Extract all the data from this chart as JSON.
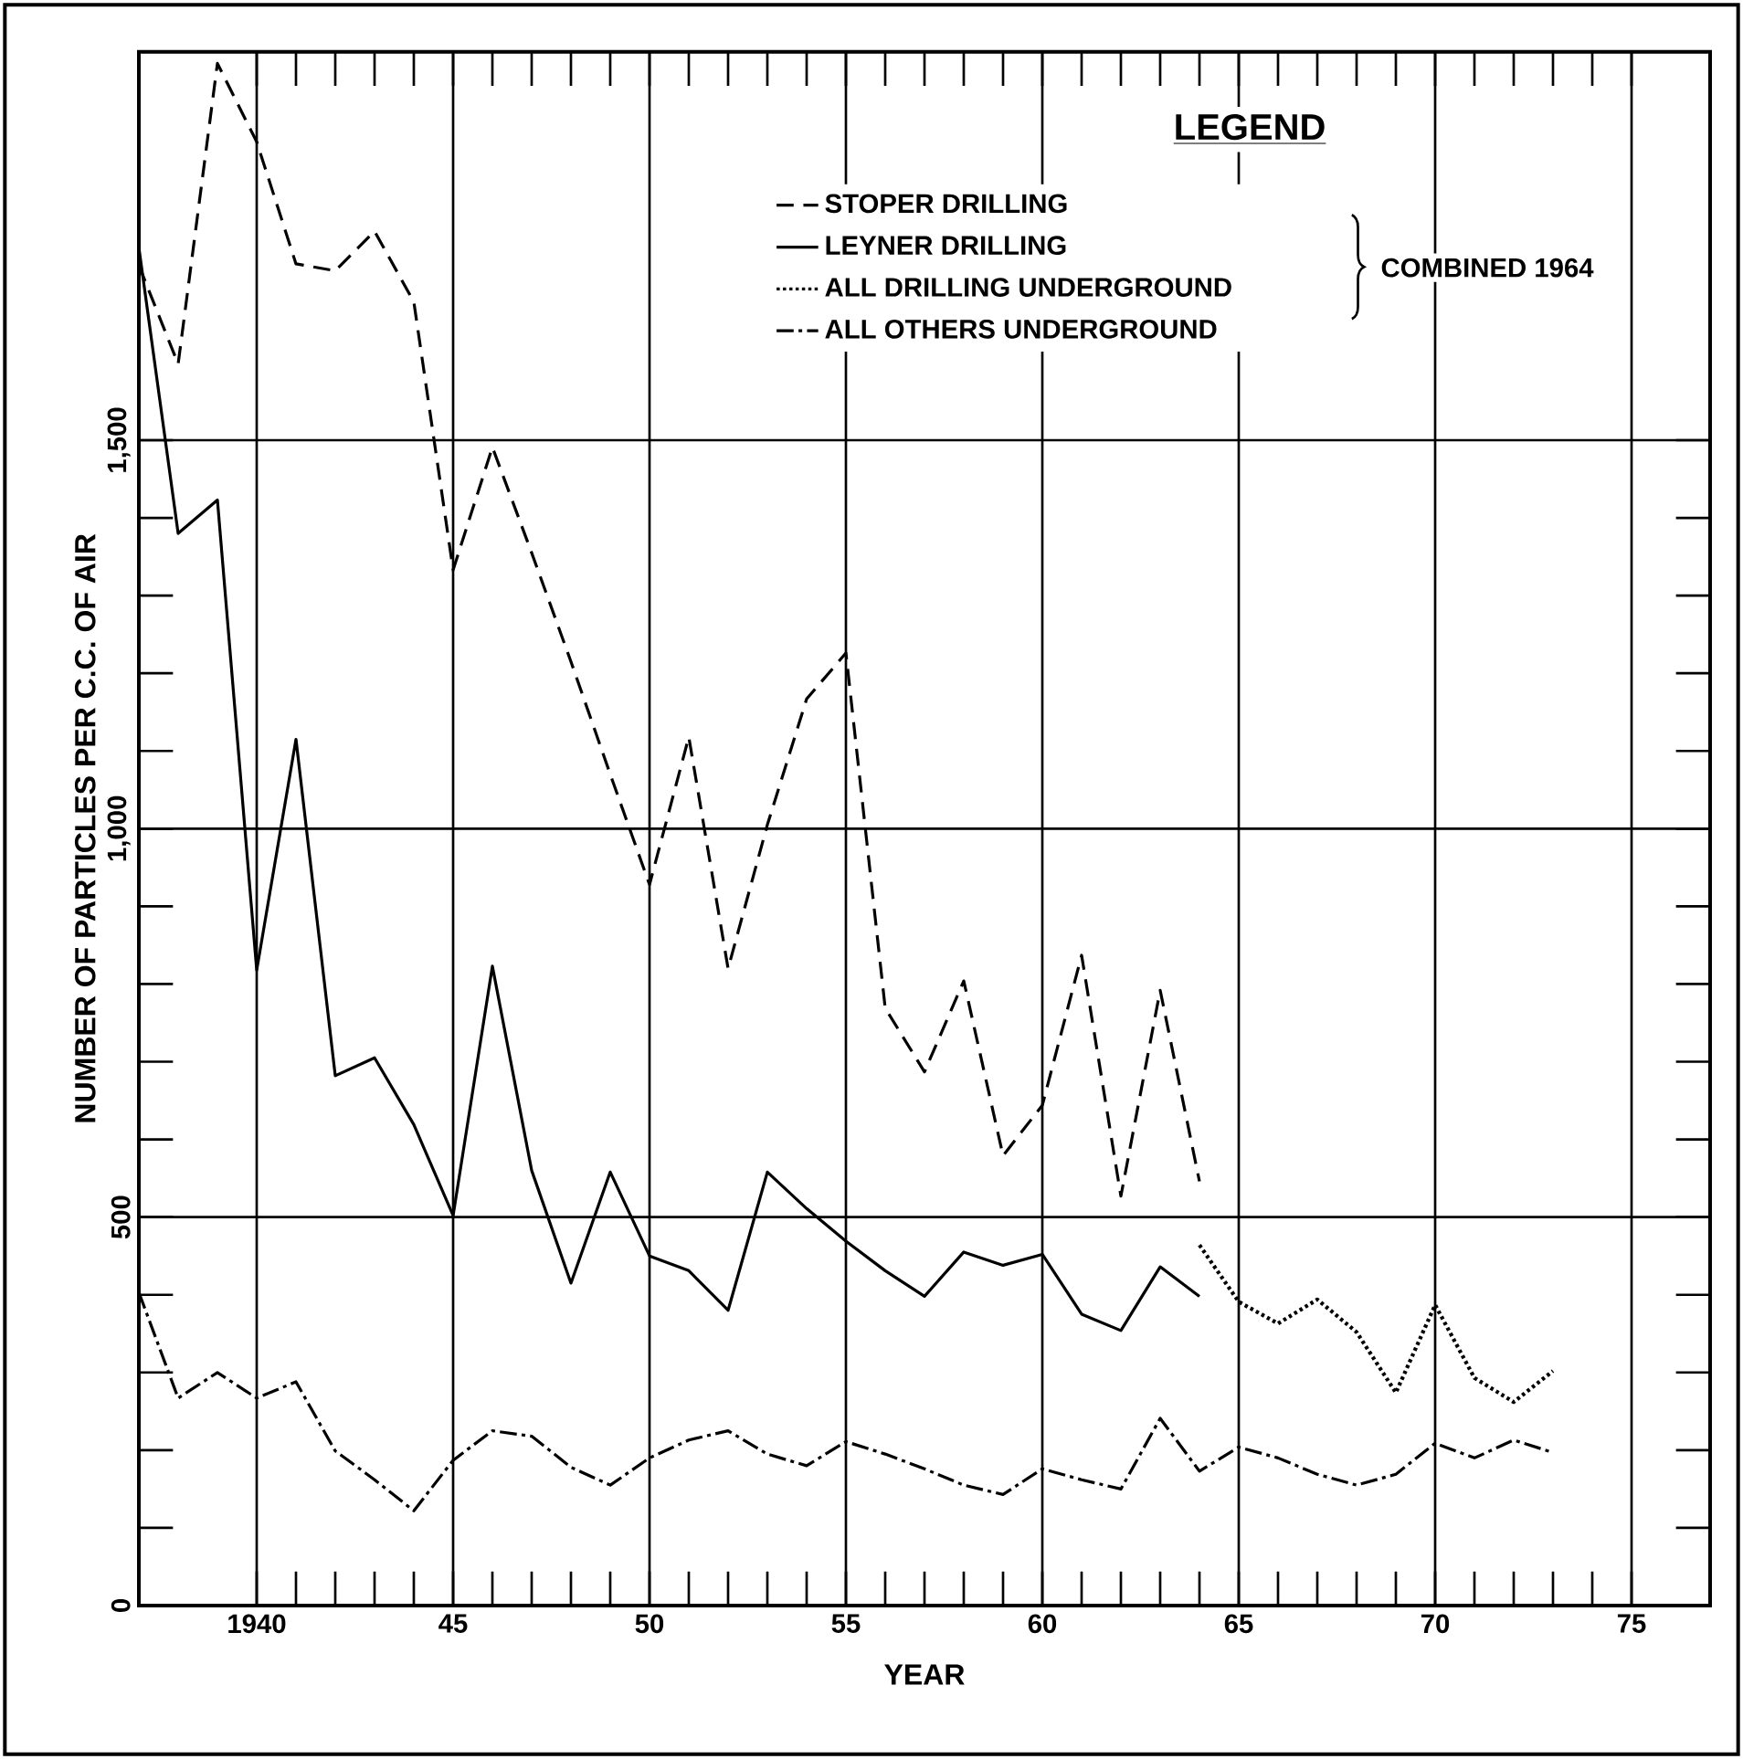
{
  "chart_data": {
    "type": "line",
    "xlabel": "YEAR",
    "ylabel": "NUMBER OF PARTICLES PER C.C. OF AIR",
    "legend_title": "LEGEND",
    "annotations": [
      "COMBINED 1964"
    ],
    "xlim": [
      1937,
      1977
    ],
    "ylim": [
      0,
      2000
    ],
    "xticks": [
      {
        "value": 1940,
        "label": "1940"
      },
      {
        "value": 1945,
        "label": "45"
      },
      {
        "value": 1950,
        "label": "50"
      },
      {
        "value": 1955,
        "label": "55"
      },
      {
        "value": 1960,
        "label": "60"
      },
      {
        "value": 1965,
        "label": "65"
      },
      {
        "value": 1970,
        "label": "70"
      },
      {
        "value": 1975,
        "label": "75"
      }
    ],
    "yticks": [
      0,
      500,
      {
        "value": 1000,
        "label": "1,000"
      },
      {
        "value": 1500,
        "label": "1,500"
      }
    ],
    "grid": true,
    "legend": "top right",
    "marker": "none",
    "series": [
      {
        "name": "STOPER DRILLING",
        "color": "#000000",
        "line_style": "dashed",
        "x": [
          1937,
          1938,
          1939,
          1940,
          1941,
          1942,
          1943,
          1944,
          1945,
          1946,
          1947,
          1948,
          1949,
          1950,
          1951,
          1952,
          1953,
          1954,
          1955,
          1956,
          1957,
          1958,
          1959,
          1960,
          1961,
          1962,
          1963,
          1964
        ],
        "values": [
          1725,
          1598,
          1985,
          1884,
          1727,
          1718,
          1769,
          1678,
          1333,
          1491,
          1355,
          1215,
          1070,
          928,
          1118,
          820,
          1005,
          1167,
          1226,
          769,
          687,
          804,
          579,
          644,
          837,
          527,
          792,
          546
        ]
      },
      {
        "name": "LEYNER DRILLING",
        "color": "#000000",
        "line_style": "solid",
        "x": [
          1937,
          1938,
          1939,
          1940,
          1941,
          1942,
          1943,
          1944,
          1945,
          1946,
          1947,
          1948,
          1949,
          1950,
          1951,
          1952,
          1953,
          1954,
          1955,
          1956,
          1957,
          1958,
          1959,
          1960,
          1961,
          1962,
          1963,
          1964
        ],
        "values": [
          1748,
          1380,
          1423,
          818,
          1115,
          682,
          705,
          619,
          502,
          823,
          560,
          415,
          558,
          450,
          431,
          380,
          558,
          511,
          469,
          431,
          398,
          455,
          438,
          452,
          375,
          354,
          436,
          398
        ]
      },
      {
        "name": "ALL DRILLING UNDERGROUND",
        "color": "#000000",
        "line_style": "dotted",
        "x": [
          1964,
          1965,
          1966,
          1967,
          1968,
          1969,
          1970,
          1971,
          1972,
          1973
        ],
        "values": [
          464,
          391,
          363,
          394,
          352,
          274,
          387,
          293,
          262,
          302
        ]
      },
      {
        "name": "ALL OTHERS UNDERGROUND",
        "color": "#000000",
        "line_style": "dashdot",
        "x": [
          1937,
          1938,
          1939,
          1940,
          1941,
          1942,
          1943,
          1944,
          1945,
          1946,
          1947,
          1948,
          1949,
          1950,
          1951,
          1952,
          1953,
          1954,
          1955,
          1956,
          1957,
          1958,
          1959,
          1960,
          1961,
          1962,
          1963,
          1964,
          1965,
          1966,
          1967,
          1968,
          1969,
          1970,
          1971,
          1972,
          1973
        ],
        "values": [
          403,
          267,
          300,
          267,
          288,
          199,
          162,
          122,
          187,
          225,
          218,
          178,
          155,
          190,
          213,
          225,
          195,
          180,
          211,
          195,
          176,
          155,
          143,
          176,
          162,
          150,
          241,
          173,
          204,
          190,
          169,
          155,
          169,
          209,
          190,
          213,
          197
        ]
      }
    ]
  }
}
